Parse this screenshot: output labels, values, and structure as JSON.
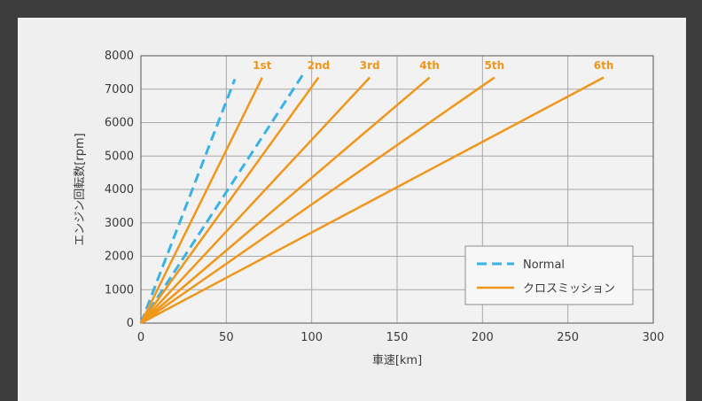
{
  "chart_data": {
    "type": "line",
    "title": "",
    "xlabel": "車速[km]",
    "ylabel": "エンジン回転数[rpm]",
    "xlim": [
      0,
      300
    ],
    "ylim": [
      0,
      8000
    ],
    "xticks": [
      "0",
      "50",
      "100",
      "150",
      "200",
      "250",
      "300"
    ],
    "yticks": [
      "0",
      "1000",
      "2000",
      "3000",
      "4000",
      "5000",
      "6000",
      "7000",
      "8000"
    ],
    "grid": true,
    "legend_position": "bottom-right",
    "colors": {
      "normal": "#3ab2e6",
      "close": "#f0961a"
    },
    "series": [
      {
        "name": "Normal",
        "style": "dashed",
        "lines": [
          {
            "x": [
              0,
              55
            ],
            "y": [
              0,
              7300
            ]
          },
          {
            "x": [
              0,
              95
            ],
            "y": [
              0,
              7450
            ]
          }
        ]
      },
      {
        "name": "クロスミッション",
        "style": "solid",
        "lines": [
          {
            "gear": "1st",
            "x": [
              0,
              71
            ],
            "y": [
              0,
              7350
            ]
          },
          {
            "gear": "2nd",
            "x": [
              0,
              104
            ],
            "y": [
              0,
              7350
            ]
          },
          {
            "gear": "3rd",
            "x": [
              0,
              134
            ],
            "y": [
              0,
              7350
            ]
          },
          {
            "gear": "4th",
            "x": [
              0,
              169
            ],
            "y": [
              0,
              7350
            ]
          },
          {
            "gear": "5th",
            "x": [
              0,
              207
            ],
            "y": [
              0,
              7350
            ]
          },
          {
            "gear": "6th",
            "x": [
              0,
              271
            ],
            "y": [
              0,
              7350
            ]
          }
        ]
      }
    ],
    "annotations": [
      {
        "text": "1st",
        "x": 71,
        "y": 7350
      },
      {
        "text": "2nd",
        "x": 104,
        "y": 7350
      },
      {
        "text": "3rd",
        "x": 134,
        "y": 7350
      },
      {
        "text": "4th",
        "x": 169,
        "y": 7350
      },
      {
        "text": "5th",
        "x": 207,
        "y": 7350
      },
      {
        "text": "6th",
        "x": 271,
        "y": 7350
      }
    ]
  }
}
